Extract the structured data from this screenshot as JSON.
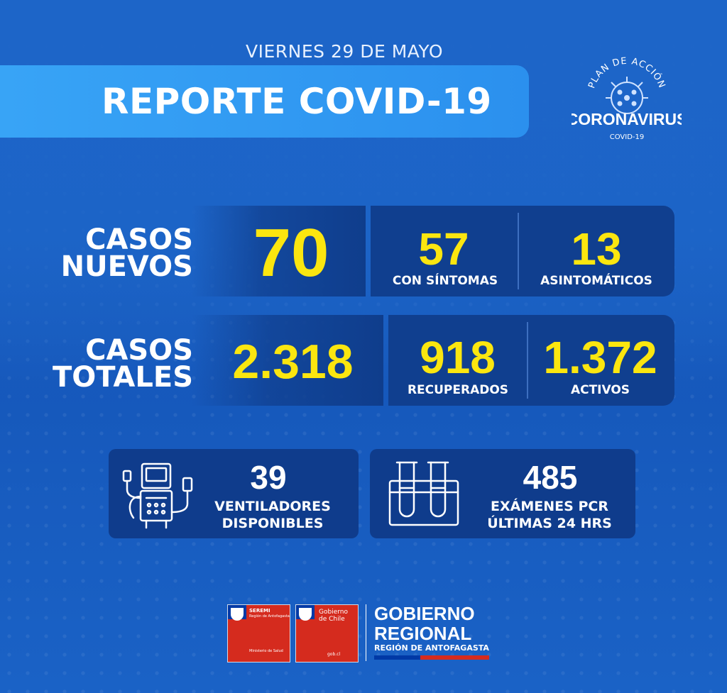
{
  "header": {
    "date": "VIERNES 29 DE MAYO",
    "title": "REPORTE COVID-19",
    "campaign_logo": {
      "arc_text": "PLAN DE ACCIÓN",
      "main_text": "CORONAVIRUS",
      "sub_text": "COVID-19",
      "icon": "virus-icon"
    }
  },
  "new_cases": {
    "label_line1": "CASOS",
    "label_line2": "NUEVOS",
    "total": "70",
    "symptomatic": {
      "value": "57",
      "label": "CON SÍNTOMAS"
    },
    "asymptomatic": {
      "value": "13",
      "label": "ASINTOMÁTICOS"
    }
  },
  "total_cases": {
    "label_line1": "CASOS",
    "label_line2": "TOTALES",
    "total": "2.318",
    "recovered": {
      "value": "918",
      "label": "RECUPERADOS"
    },
    "active": {
      "value": "1.372",
      "label": "ACTIVOS"
    }
  },
  "ventilators": {
    "value": "39",
    "label_line1": "VENTILADORES",
    "label_line2": "DISPONIBLES",
    "icon": "ventilator-icon"
  },
  "pcr": {
    "value": "485",
    "label_line1": "EXÁMENES PCR",
    "label_line2": "ÚLTIMAS 24 HRS",
    "icon": "test-tubes-icon"
  },
  "footer": {
    "seremi": {
      "title": "SEREMI",
      "region": "Región de Antofagasta",
      "ministry": "Ministerio de Salud"
    },
    "gobierno_chile": {
      "title_line1": "Gobierno",
      "title_line2": "de Chile",
      "site": "gob.cl"
    },
    "gobierno_regional": {
      "line1": "GOBIERNO",
      "line2": "REGIONAL",
      "line3": "REGIÓN DE ANTOFAGASTA"
    }
  },
  "colors": {
    "background": "#1a5fc0",
    "banner": "#38a4f6",
    "panel": "#103f8f",
    "highlight_yellow": "#fbe60f",
    "flag_red": "#d52b1e",
    "flag_blue": "#0039a6"
  }
}
